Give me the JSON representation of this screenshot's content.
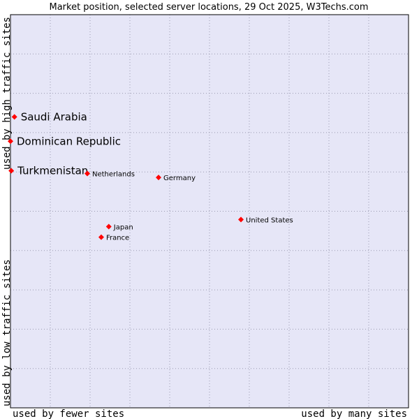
{
  "chart_data": {
    "type": "scatter",
    "title": "Market position, selected server locations, 29 Oct 2025, W3Techs.com",
    "xlabel_left": "used by fewer sites",
    "xlabel_right": "used by many sites",
    "ylabel_bottom": "used by low traffic sites",
    "ylabel_top": "used by high traffic sites",
    "xlim": [
      0,
      10
    ],
    "ylim": [
      0,
      10
    ],
    "grid": true,
    "colors": {
      "plot_bg": "#e6e6f7",
      "grid": "#9a9ab0",
      "marker": "#ff0000"
    },
    "points": [
      {
        "name": "Saudi Arabia",
        "x": 0.1,
        "y": 7.4,
        "emphasis": true
      },
      {
        "name": "Dominican Republic",
        "x": 0.0,
        "y": 6.78,
        "emphasis": true
      },
      {
        "name": "Turkmenistan",
        "x": 0.02,
        "y": 6.03,
        "emphasis": true
      },
      {
        "name": "Netherlands",
        "x": 1.93,
        "y": 5.96,
        "emphasis": false
      },
      {
        "name": "Germany",
        "x": 3.72,
        "y": 5.86,
        "emphasis": false
      },
      {
        "name": "United States",
        "x": 5.79,
        "y": 4.79,
        "emphasis": false
      },
      {
        "name": "Japan",
        "x": 2.47,
        "y": 4.61,
        "emphasis": false
      },
      {
        "name": "France",
        "x": 2.28,
        "y": 4.34,
        "emphasis": false
      }
    ]
  }
}
